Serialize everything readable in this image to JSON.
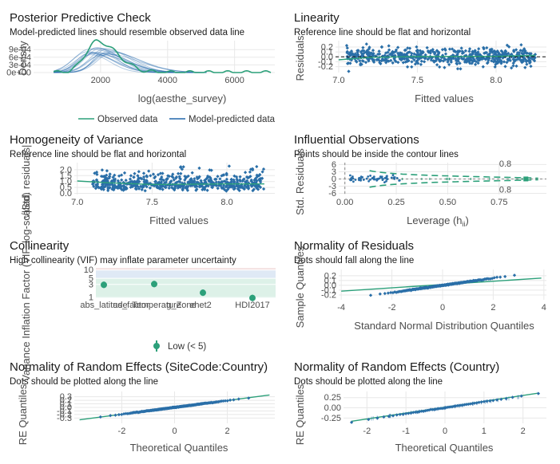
{
  "colors": {
    "blue": "#2166ac",
    "bluePts": "#2a6fa8",
    "green": "#2ca07a",
    "grid": "#e8e8e8",
    "bandBlue": "#dfe9f5",
    "bandGreen": "#ddf1e8"
  },
  "chart_data": [
    {
      "id": "ppc",
      "type": "line",
      "title": "Posterior Predictive Check",
      "subtitle": "Model-predicted lines should resemble observed data line",
      "xlabel": "log(aesthe_survey)",
      "ylabel": "Density",
      "xlim": [
        0,
        7200
      ],
      "ylim": [
        0,
        0.00125
      ],
      "xticks": [
        "2000",
        "4000",
        "6000"
      ],
      "xtick_values": [
        2000,
        4000,
        6000
      ],
      "yticks": [
        "0e+00",
        "3e-04",
        "6e-04",
        "9e-04"
      ],
      "ytick_values": [
        0,
        0.0003,
        0.0006,
        0.0009
      ],
      "legend": [
        "Observed data",
        "Model-predicted data"
      ],
      "observed": {
        "peak_x": 1900,
        "peak_y": 0.00122,
        "sd_left": 350,
        "sd_right": 600
      }
    },
    {
      "id": "linearity",
      "type": "scatter",
      "title": "Linearity",
      "subtitle": "Reference line should be flat and horizontal",
      "xlabel": "Fitted values",
      "ylabel": "Residuals",
      "xlim": [
        6.98,
        8.32
      ],
      "ylim": [
        -0.32,
        0.33
      ],
      "xticks": [
        "7.0",
        "7.5",
        "8.0"
      ],
      "xtick_values": [
        7.0,
        7.5,
        8.0
      ],
      "yticks": [
        "-0.2",
        "-0.1",
        "0.0",
        "0.1",
        "0.2"
      ],
      "ytick_values": [
        -0.2,
        -0.1,
        0.0,
        0.1,
        0.2
      ],
      "fit_line": [
        [
          7.0,
          -0.06
        ],
        [
          7.2,
          -0.01
        ],
        [
          7.5,
          0.005
        ],
        [
          8.0,
          0.01
        ],
        [
          8.25,
          0.03
        ]
      ]
    },
    {
      "id": "homogeneity",
      "type": "scatter",
      "title": "Homogeneity of Variance",
      "subtitle": "Reference line should be flat and horizontal",
      "xlabel": "Fitted values",
      "ylabel": "√|Std. residuals|",
      "xlim": [
        6.98,
        8.32
      ],
      "ylim": [
        -0.1,
        2.6
      ],
      "xticks": [
        "7.0",
        "7.5",
        "8.0"
      ],
      "xtick_values": [
        7.0,
        7.5,
        8.0
      ],
      "yticks": [
        "0.0",
        "0.5",
        "1.0",
        "1.5",
        "2.0"
      ],
      "ytick_values": [
        0,
        0.5,
        1.0,
        1.5,
        2.0
      ],
      "fit_line": [
        [
          7.0,
          1.05
        ],
        [
          7.2,
          0.9
        ],
        [
          7.5,
          0.75
        ],
        [
          8.0,
          0.8
        ],
        [
          8.25,
          0.8
        ]
      ]
    },
    {
      "id": "influence",
      "type": "scatter",
      "title": "Influential Observations",
      "subtitle": "Points should be inside the contour lines",
      "xlabel": "Leverage (h",
      "xlabel_sub": "ii",
      "xlabel_close": ")",
      "ylabel": "Std. Residuals",
      "xlim": [
        -0.03,
        0.98
      ],
      "ylim": [
        -6.5,
        6.8
      ],
      "xticks": [
        "0.00",
        "0.25",
        "0.50",
        "0.75"
      ],
      "xtick_values": [
        0,
        0.25,
        0.5,
        0.75
      ],
      "yticks": [
        "-6",
        "-3",
        "0",
        "3",
        "6"
      ],
      "ytick_values": [
        -6,
        -3,
        0,
        3,
        6
      ],
      "contour_labels": [
        "0.8",
        "0.8"
      ]
    },
    {
      "id": "collinearity",
      "type": "scatter",
      "title": "Collinearity",
      "subtitle": "High collinearity (VIF) may inflate parameter uncertainty",
      "ylabel": "Variance Inflation Factor (VIF, log-scaled)",
      "categories": [
        "abs_latitude",
        "as_factor",
        "Temperature",
        "g_Zone",
        "ehet2",
        "HDI2017"
      ],
      "values": [
        2.9,
        3.1,
        1.5,
        1.2,
        1.15,
        0.97
      ],
      "xtick_labels": [
        "abs_latitude",
        "as_factor",
        "Temperature",
        "g_Zone",
        "ehet2",
        "HDI2017"
      ],
      "ylim_log": [
        0.95,
        12
      ],
      "yticks": [
        "1",
        "3",
        "5",
        "10"
      ],
      "ytick_values": [
        1,
        3,
        5,
        10
      ],
      "legend": [
        "Low (< 5)"
      ]
    },
    {
      "id": "normres",
      "type": "scatter",
      "title": "Normality of Residuals",
      "subtitle": "Dots should fall along the line",
      "xlabel": "Standard Normal Distribution Quantiles",
      "ylabel": "Sample Quantiles",
      "xlim": [
        -4.1,
        4.1
      ],
      "ylim": [
        -0.3,
        0.33
      ],
      "xticks": [
        "-4",
        "-2",
        "0",
        "2",
        "4"
      ],
      "xtick_values": [
        -4,
        -2,
        0,
        2,
        4
      ],
      "yticks": [
        "-0.2",
        "-0.1",
        "0.0",
        "0.1",
        "0.2"
      ],
      "ytick_values": [
        -0.2,
        -0.1,
        0.0,
        0.1,
        0.2
      ]
    },
    {
      "id": "re1",
      "type": "scatter",
      "title": "Normality of Random Effects (SiteCode:Country)",
      "subtitle": "Dots should be plotted along the line",
      "xlabel": "Theoretical Quantiles",
      "ylabel": "RE Quantiles",
      "xlim": [
        -3.8,
        3.8
      ],
      "ylim": [
        -0.45,
        0.45
      ],
      "xticks": [
        "-2",
        "0",
        "2"
      ],
      "xtick_values": [
        -2,
        0,
        2
      ],
      "yticks": [
        "-0.3",
        "-0.2",
        "-0.1",
        "0.0",
        "0.1",
        "0.2",
        "0.3"
      ],
      "ytick_values": [
        -0.3,
        -0.2,
        -0.1,
        0,
        0.1,
        0.2,
        0.3
      ]
    },
    {
      "id": "re2",
      "type": "scatter",
      "title": "Normality of Random Effects (Country)",
      "subtitle": "Dots should be plotted along the line",
      "xlabel": "Theoretical Quantiles",
      "ylabel": "RE Quantiles",
      "xlim": [
        -2.6,
        2.6
      ],
      "ylim": [
        -0.38,
        0.4
      ],
      "xticks": [
        "-2",
        "-1",
        "0",
        "1",
        "2"
      ],
      "xtick_values": [
        -2,
        -1,
        0,
        1,
        2
      ],
      "yticks": [
        "-0.25",
        "0.00",
        "0.25"
      ],
      "ytick_values": [
        -0.25,
        0,
        0.25
      ]
    }
  ]
}
